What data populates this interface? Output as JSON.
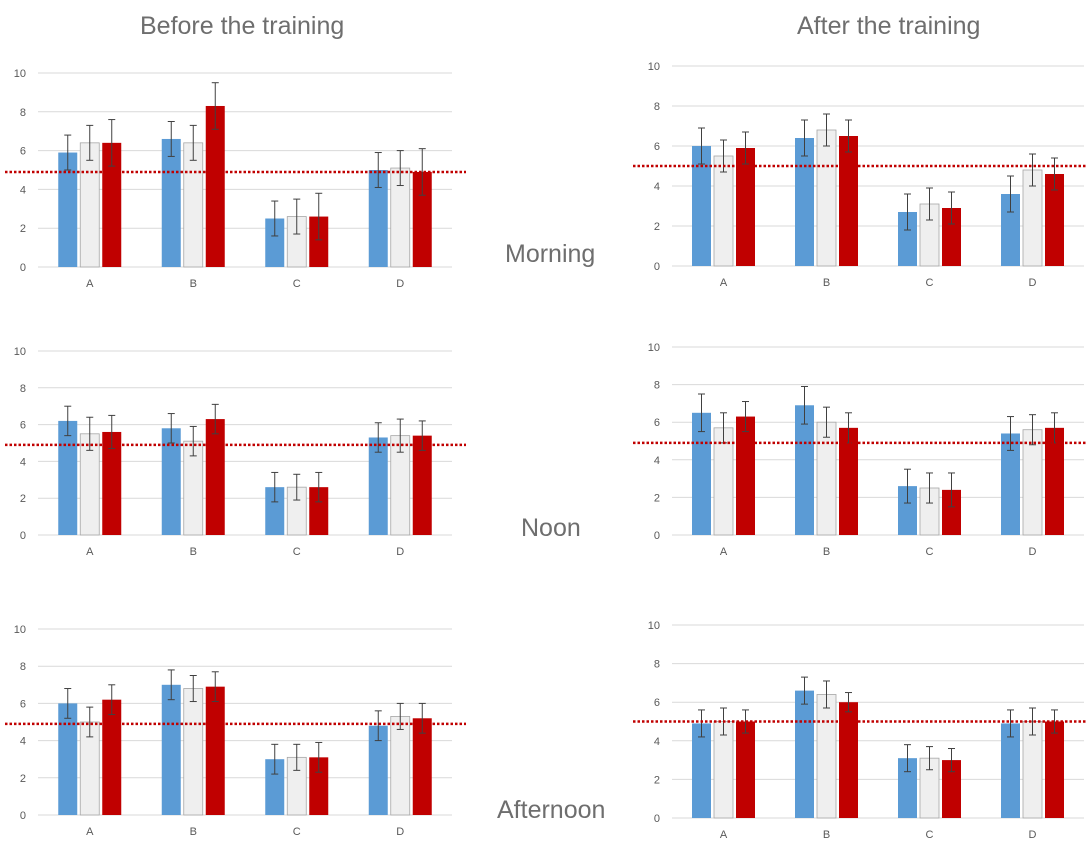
{
  "column_titles": {
    "before": "Before the training",
    "after": "After the training"
  },
  "row_labels": {
    "morning": "Morning",
    "noon": "Noon",
    "afternoon": "Afternoon"
  },
  "colors": {
    "series1": "#5b9bd5",
    "series2": "#efefef",
    "series2_stroke": "#a6a6a6",
    "series3": "#c00000",
    "reference_line": "#c00000",
    "gridline": "#d9d9d9"
  },
  "chart_data": [
    {
      "type": "bar",
      "panel": "Before the training / Morning",
      "categories": [
        "A",
        "B",
        "C",
        "D"
      ],
      "ylim": [
        0,
        10
      ],
      "yticks": [
        0,
        2,
        4,
        6,
        8,
        10
      ],
      "reference_line": 4.9,
      "series": [
        {
          "values": [
            5.9,
            6.6,
            2.5,
            5.0
          ],
          "errors": [
            0.9,
            0.9,
            0.9,
            0.9
          ]
        },
        {
          "values": [
            6.4,
            6.4,
            2.6,
            5.1
          ],
          "errors": [
            0.9,
            0.9,
            0.9,
            0.9
          ]
        },
        {
          "values": [
            6.4,
            8.3,
            2.6,
            4.9
          ],
          "errors": [
            1.2,
            1.2,
            1.2,
            1.2
          ]
        }
      ]
    },
    {
      "type": "bar",
      "panel": "After the training / Morning",
      "categories": [
        "A",
        "B",
        "C",
        "D"
      ],
      "ylim": [
        0,
        10
      ],
      "yticks": [
        0,
        2,
        4,
        6,
        8,
        10
      ],
      "reference_line": 5.0,
      "series": [
        {
          "values": [
            6.0,
            6.4,
            2.7,
            3.6
          ],
          "errors": [
            0.9,
            0.9,
            0.9,
            0.9
          ]
        },
        {
          "values": [
            5.5,
            6.8,
            3.1,
            4.8
          ],
          "errors": [
            0.8,
            0.8,
            0.8,
            0.8
          ]
        },
        {
          "values": [
            5.9,
            6.5,
            2.9,
            4.6
          ],
          "errors": [
            0.8,
            0.8,
            0.8,
            0.8
          ]
        }
      ]
    },
    {
      "type": "bar",
      "panel": "Before the training / Noon",
      "categories": [
        "A",
        "B",
        "C",
        "D"
      ],
      "ylim": [
        0,
        10
      ],
      "yticks": [
        0,
        2,
        4,
        6,
        8,
        10
      ],
      "reference_line": 4.9,
      "series": [
        {
          "values": [
            6.2,
            5.8,
            2.6,
            5.3
          ],
          "errors": [
            0.8,
            0.8,
            0.8,
            0.8
          ]
        },
        {
          "values": [
            5.5,
            5.1,
            2.6,
            5.4
          ],
          "errors": [
            0.9,
            0.8,
            0.7,
            0.9
          ]
        },
        {
          "values": [
            5.6,
            6.3,
            2.6,
            5.4
          ],
          "errors": [
            0.9,
            0.8,
            0.8,
            0.8
          ]
        }
      ]
    },
    {
      "type": "bar",
      "panel": "After the training / Noon",
      "categories": [
        "A",
        "B",
        "C",
        "D"
      ],
      "ylim": [
        0,
        10
      ],
      "yticks": [
        0,
        2,
        4,
        6,
        8,
        10
      ],
      "reference_line": 4.9,
      "series": [
        {
          "values": [
            6.5,
            6.9,
            2.6,
            5.4
          ],
          "errors": [
            1.0,
            1.0,
            0.9,
            0.9
          ]
        },
        {
          "values": [
            5.7,
            6.0,
            2.5,
            5.6
          ],
          "errors": [
            0.8,
            0.8,
            0.8,
            0.8
          ]
        },
        {
          "values": [
            6.3,
            5.7,
            2.4,
            5.7
          ],
          "errors": [
            0.8,
            0.8,
            0.9,
            0.8
          ]
        }
      ]
    },
    {
      "type": "bar",
      "panel": "Before the training / Afternoon",
      "categories": [
        "A",
        "B",
        "C",
        "D"
      ],
      "ylim": [
        0,
        10
      ],
      "yticks": [
        0,
        2,
        4,
        6,
        8,
        10
      ],
      "reference_line": 4.9,
      "series": [
        {
          "values": [
            6.0,
            7.0,
            3.0,
            4.8
          ],
          "errors": [
            0.8,
            0.8,
            0.8,
            0.8
          ]
        },
        {
          "values": [
            5.0,
            6.8,
            3.1,
            5.3
          ],
          "errors": [
            0.8,
            0.7,
            0.7,
            0.7
          ]
        },
        {
          "values": [
            6.2,
            6.9,
            3.1,
            5.2
          ],
          "errors": [
            0.8,
            0.8,
            0.8,
            0.8
          ]
        }
      ]
    },
    {
      "type": "bar",
      "panel": "After the training / Afternoon",
      "categories": [
        "A",
        "B",
        "C",
        "D"
      ],
      "ylim": [
        0,
        10
      ],
      "yticks": [
        0,
        2,
        4,
        6,
        8,
        10
      ],
      "reference_line": 5.0,
      "series": [
        {
          "values": [
            4.9,
            6.6,
            3.1,
            4.9
          ],
          "errors": [
            0.7,
            0.7,
            0.7,
            0.7
          ]
        },
        {
          "values": [
            5.0,
            6.4,
            3.1,
            5.0
          ],
          "errors": [
            0.7,
            0.7,
            0.6,
            0.7
          ]
        },
        {
          "values": [
            5.0,
            6.0,
            3.0,
            5.0
          ],
          "errors": [
            0.6,
            0.5,
            0.6,
            0.6
          ]
        }
      ]
    }
  ]
}
